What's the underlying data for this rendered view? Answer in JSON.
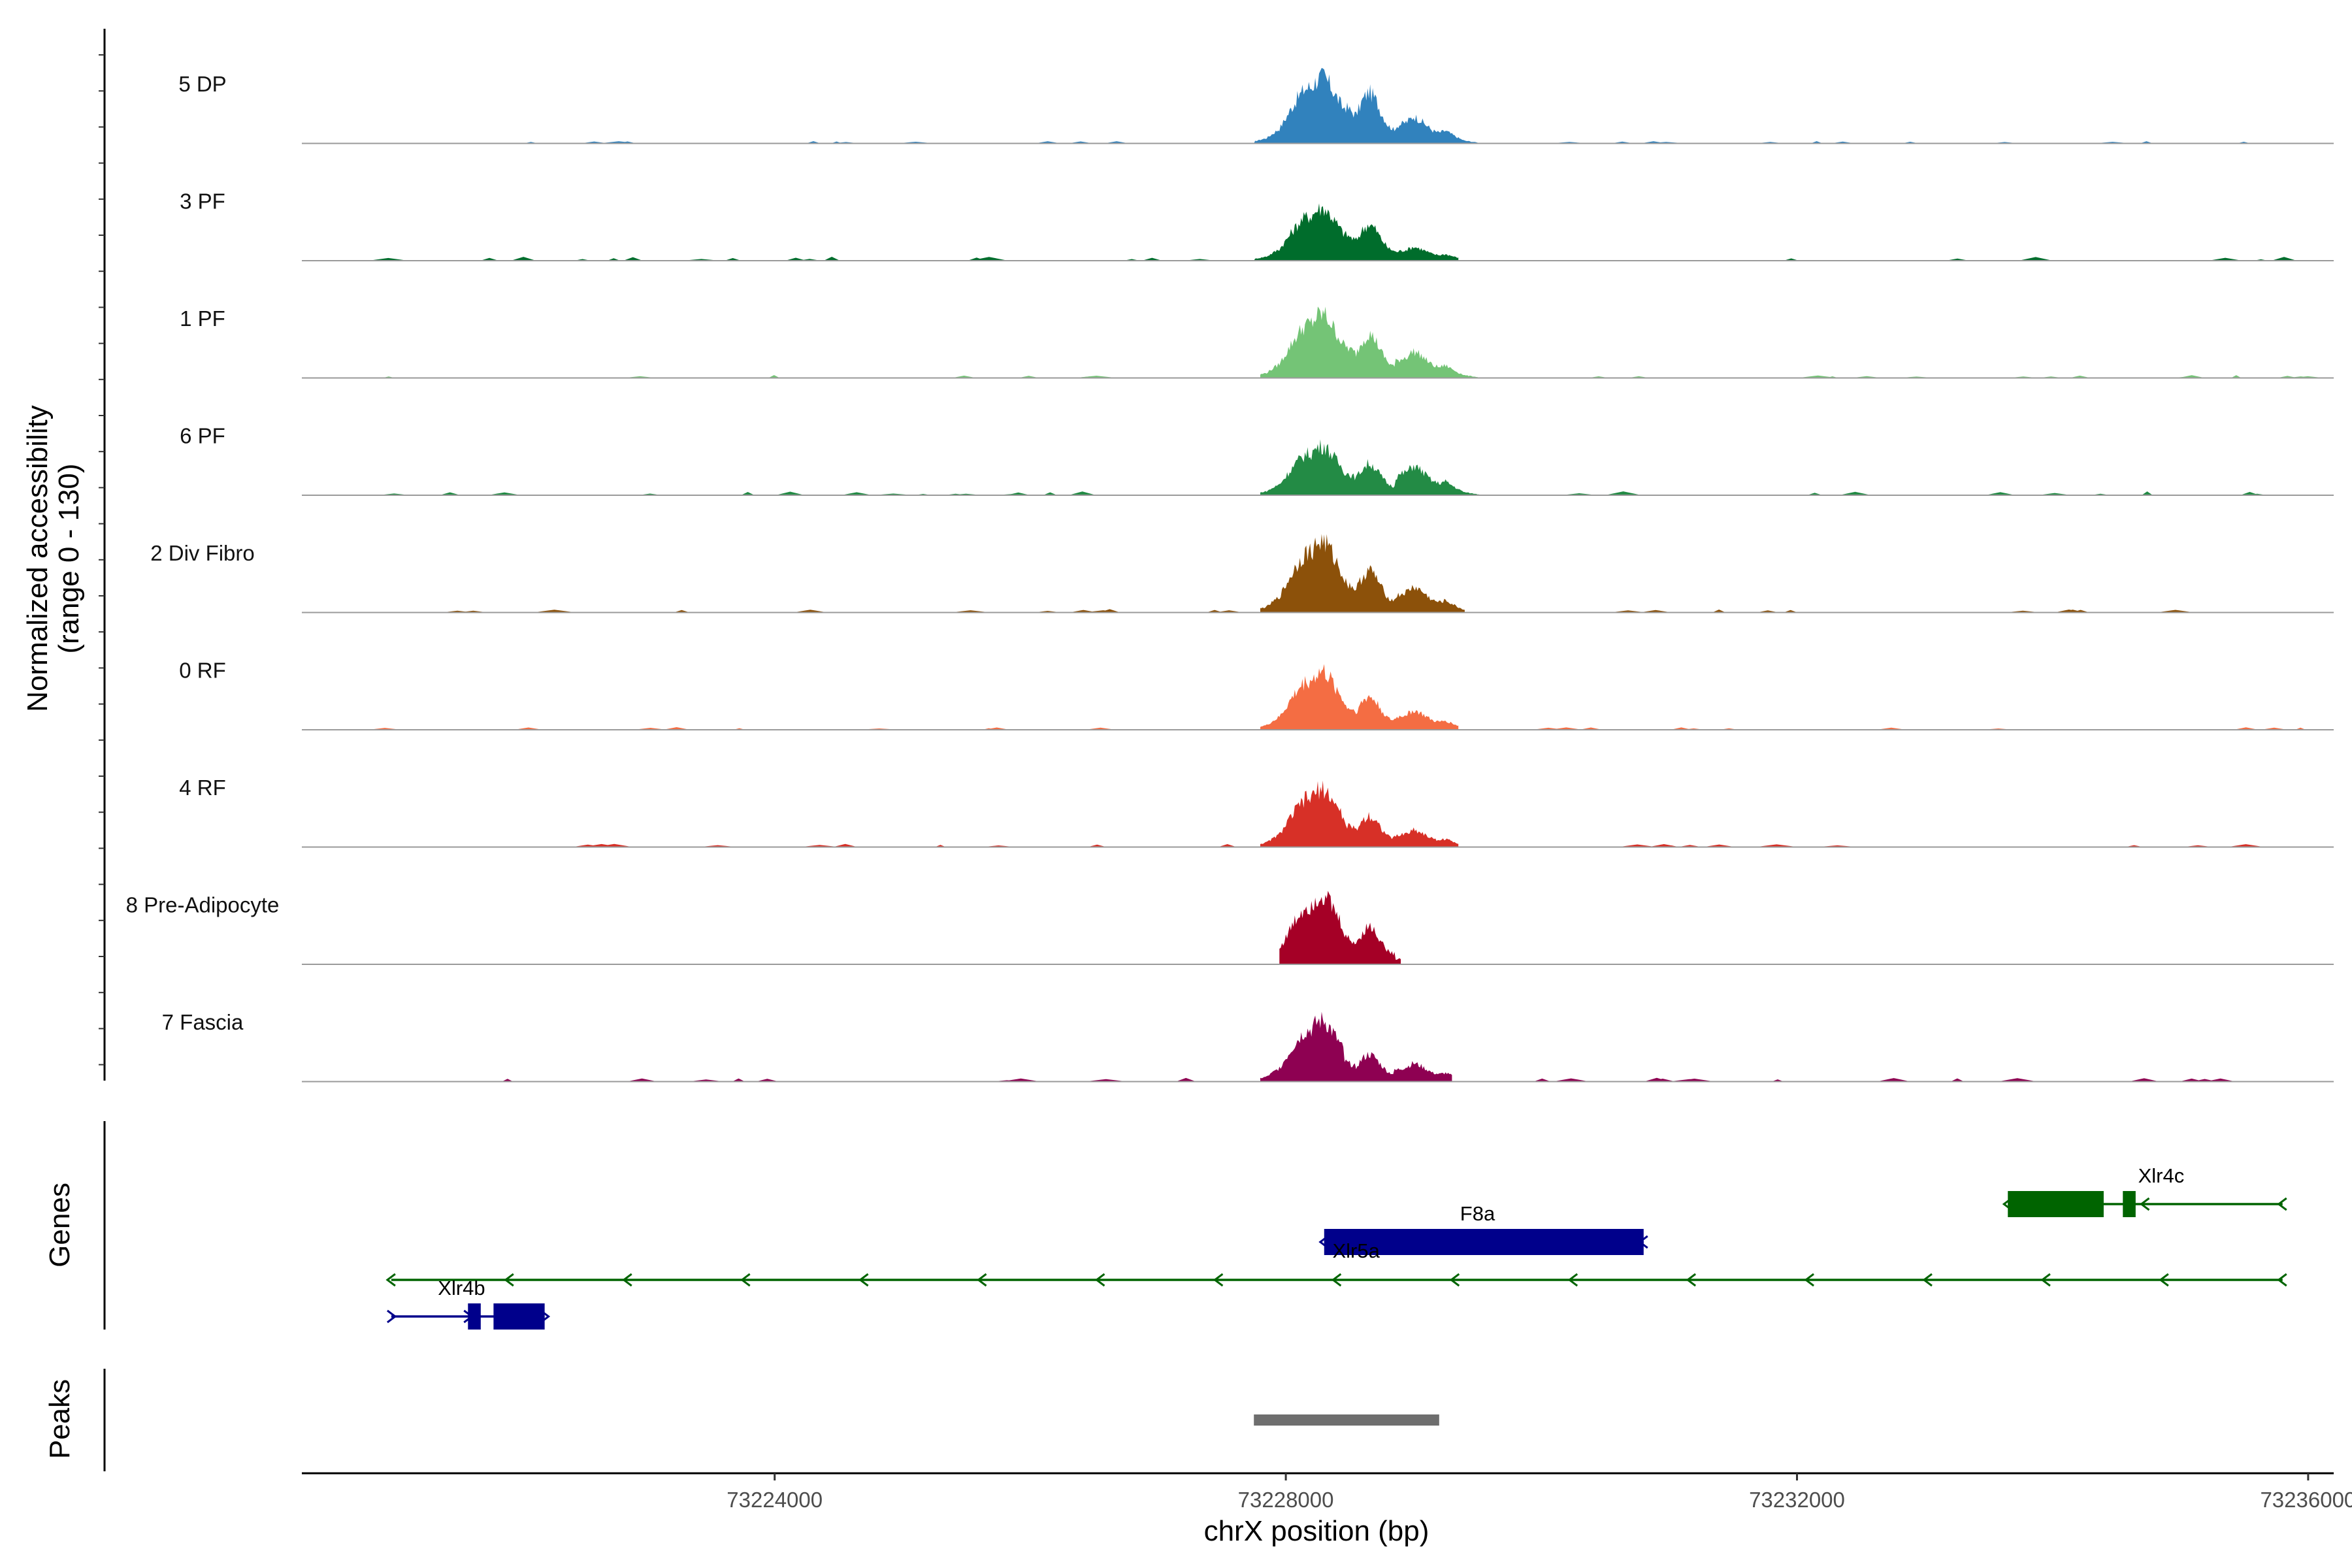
{
  "chart_data": {
    "type": "area",
    "chromosome": "chrX",
    "xlabel": "chrX position (bp)",
    "ylabel_line1": "Normalized accessibility",
    "ylabel_line2": "(range 0 - 130)",
    "y_range": [
      0,
      130
    ],
    "xlim": [
      73220300,
      73236200
    ],
    "x_ticks": [
      73224000,
      73228000,
      73232000,
      73236000
    ],
    "x_tick_labels": [
      "73224000",
      "73228000",
      "73232000",
      "73236000"
    ],
    "peak_profile": {
      "x": [
        73227750,
        73227850,
        73227950,
        73228000,
        73228050,
        73228100,
        73228150,
        73228200,
        73228250,
        73228300,
        73228350,
        73228450,
        73228550,
        73228600,
        73228650,
        73228700,
        73228750,
        73228800,
        73228850,
        73228950,
        73229000,
        73229050,
        73229100,
        73229150,
        73229200,
        73229250,
        73229300,
        73229350,
        73229400,
        73229450,
        73229550
      ],
      "y": [
        0.03,
        0.08,
        0.22,
        0.38,
        0.55,
        0.7,
        0.82,
        0.85,
        0.97,
        1.0,
        0.86,
        0.52,
        0.38,
        0.58,
        0.7,
        0.6,
        0.4,
        0.24,
        0.18,
        0.24,
        0.3,
        0.26,
        0.2,
        0.14,
        0.12,
        0.14,
        0.1,
        0.06,
        0.03,
        0.02,
        0.0
      ]
    },
    "series": [
      {
        "name": "5 DP",
        "color": "#3182bd",
        "peak": 78,
        "sub1": 0.78,
        "sub2": 0.34,
        "start": 73227750,
        "end": 73229500,
        "noise": 0.04
      },
      {
        "name": "3 PF",
        "color": "#006d2c",
        "peak": 62,
        "sub1": 0.7,
        "sub2": 0.22,
        "start": 73227750,
        "end": 73229350,
        "noise": 0.1
      },
      {
        "name": "1 PF",
        "color": "#74c476",
        "peak": 75,
        "sub1": 0.7,
        "sub2": 0.35,
        "start": 73227800,
        "end": 73229500,
        "noise": 0.06
      },
      {
        "name": "6 PF",
        "color": "#238b45",
        "peak": 58,
        "sub1": 0.65,
        "sub2": 0.5,
        "start": 73227800,
        "end": 73229700,
        "noise": 0.1
      },
      {
        "name": "2 Div Fibro",
        "color": "#8c510a",
        "peak": 84,
        "sub1": 0.6,
        "sub2": 0.3,
        "start": 73227800,
        "end": 73229400,
        "noise": 0.08
      },
      {
        "name": "0 RF",
        "color": "#f46d43",
        "peak": 68,
        "sub1": 0.58,
        "sub2": 0.28,
        "start": 73227800,
        "end": 73229350,
        "noise": 0.05
      },
      {
        "name": "4 RF",
        "color": "#d73027",
        "peak": 68,
        "sub1": 0.55,
        "sub2": 0.25,
        "start": 73227800,
        "end": 73229350,
        "noise": 0.07
      },
      {
        "name": "8 Pre-Adipocyte",
        "color": "#a50026",
        "peak": 82,
        "sub1": 0.55,
        "sub2": 0.1,
        "start": 73227950,
        "end": 73228900,
        "noise": 0.0
      },
      {
        "name": "7 Fascia",
        "color": "#8e0152",
        "peak": 72,
        "sub1": 0.45,
        "sub2": 0.25,
        "start": 73227800,
        "end": 73229300,
        "noise": 0.1
      }
    ],
    "genes_track_label": "Genes",
    "genes": [
      {
        "name": "Xlr4c",
        "color": "#006400",
        "start": 73233650,
        "end": 73235800,
        "strand": "-",
        "row": 0,
        "label_at": 73234850,
        "exons": [
          [
            73233650,
            73234400
          ],
          [
            73234550,
            73234650
          ]
        ]
      },
      {
        "name": "F8a",
        "color": "#00008b",
        "start": 73228300,
        "end": 73230800,
        "strand": "-",
        "row": 1,
        "label_at": 73229500,
        "exons": [
          [
            73228300,
            73230800
          ]
        ]
      },
      {
        "name": "Xlr5a",
        "color": "#006400",
        "start": 73221000,
        "end": 73235800,
        "strand": "-",
        "row": 2,
        "label_at": 73228550,
        "exons": []
      },
      {
        "name": "Xlr4b",
        "color": "#00008b",
        "start": 73221000,
        "end": 73222200,
        "strand": "+",
        "row": 3,
        "label_at": 73221550,
        "exons": [
          [
            73221600,
            73221700
          ],
          [
            73221800,
            73222200
          ]
        ]
      }
    ],
    "peaks_track_label": "Peaks",
    "peaks": [
      {
        "start": 73227750,
        "end": 73229200,
        "color": "#6e6e6e"
      }
    ]
  }
}
